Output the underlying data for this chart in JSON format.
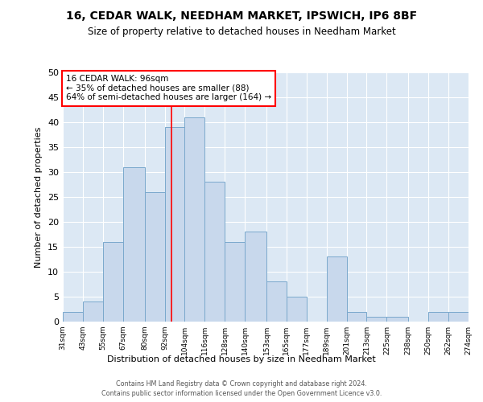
{
  "title1": "16, CEDAR WALK, NEEDHAM MARKET, IPSWICH, IP6 8BF",
  "title2": "Size of property relative to detached houses in Needham Market",
  "xlabel": "Distribution of detached houses by size in Needham Market",
  "ylabel": "Number of detached properties",
  "bin_edges": [
    31,
    43,
    55,
    67,
    80,
    92,
    104,
    116,
    128,
    140,
    153,
    165,
    177,
    189,
    201,
    213,
    225,
    238,
    250,
    262,
    274
  ],
  "bar_heights": [
    2,
    4,
    16,
    31,
    26,
    39,
    41,
    28,
    16,
    18,
    8,
    5,
    0,
    13,
    2,
    1,
    1,
    0,
    2,
    2
  ],
  "bar_color": "#c8d8ec",
  "bar_edge_color": "#7aa8cc",
  "red_line_x": 96,
  "annotation_title": "16 CEDAR WALK: 96sqm",
  "annotation_line1": "← 35% of detached houses are smaller (88)",
  "annotation_line2": "64% of semi-detached houses are larger (164) →",
  "yticks": [
    0,
    5,
    10,
    15,
    20,
    25,
    30,
    35,
    40,
    45,
    50
  ],
  "ylim": [
    0,
    50
  ],
  "bg_color": "#dce8f4",
  "grid_color": "white",
  "footer1": "Contains HM Land Registry data © Crown copyright and database right 2024.",
  "footer2": "Contains public sector information licensed under the Open Government Licence v3.0."
}
